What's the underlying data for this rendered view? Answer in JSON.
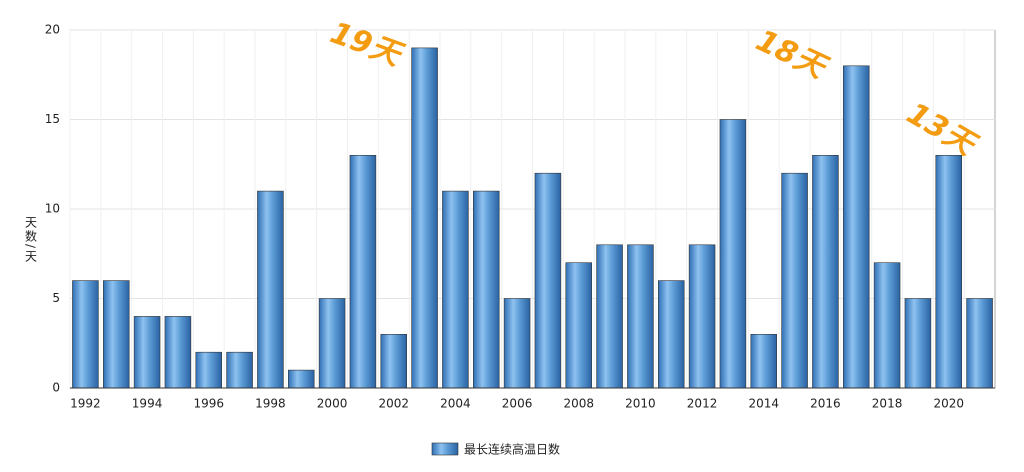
{
  "chart_data": {
    "type": "bar",
    "y_label": "天数/天",
    "categories": [
      "1992",
      null,
      "1994",
      null,
      "1996",
      null,
      "1998",
      null,
      "2000",
      null,
      "2002",
      null,
      "2004",
      null,
      "2006",
      null,
      "2008",
      null,
      "2010",
      null,
      "2012",
      null,
      "2014",
      null,
      "2016",
      null,
      "2018",
      null,
      "2020",
      null
    ],
    "series": [
      {
        "name": "最长连续高温日数",
        "color": "#5b9bd5",
        "values": [
          6,
          6,
          4,
          4,
          2,
          2,
          11,
          1,
          5,
          13,
          3,
          19,
          11,
          11,
          5,
          12,
          7,
          8,
          8,
          6,
          8,
          15,
          3,
          12,
          13,
          18,
          7,
          5,
          13,
          5
        ]
      }
    ],
    "annotations": [
      "19天",
      "18天",
      "13天"
    ],
    "ylim": [
      0,
      20
    ],
    "yticks": [
      0,
      5,
      10,
      15,
      20
    ],
    "grid": true
  }
}
